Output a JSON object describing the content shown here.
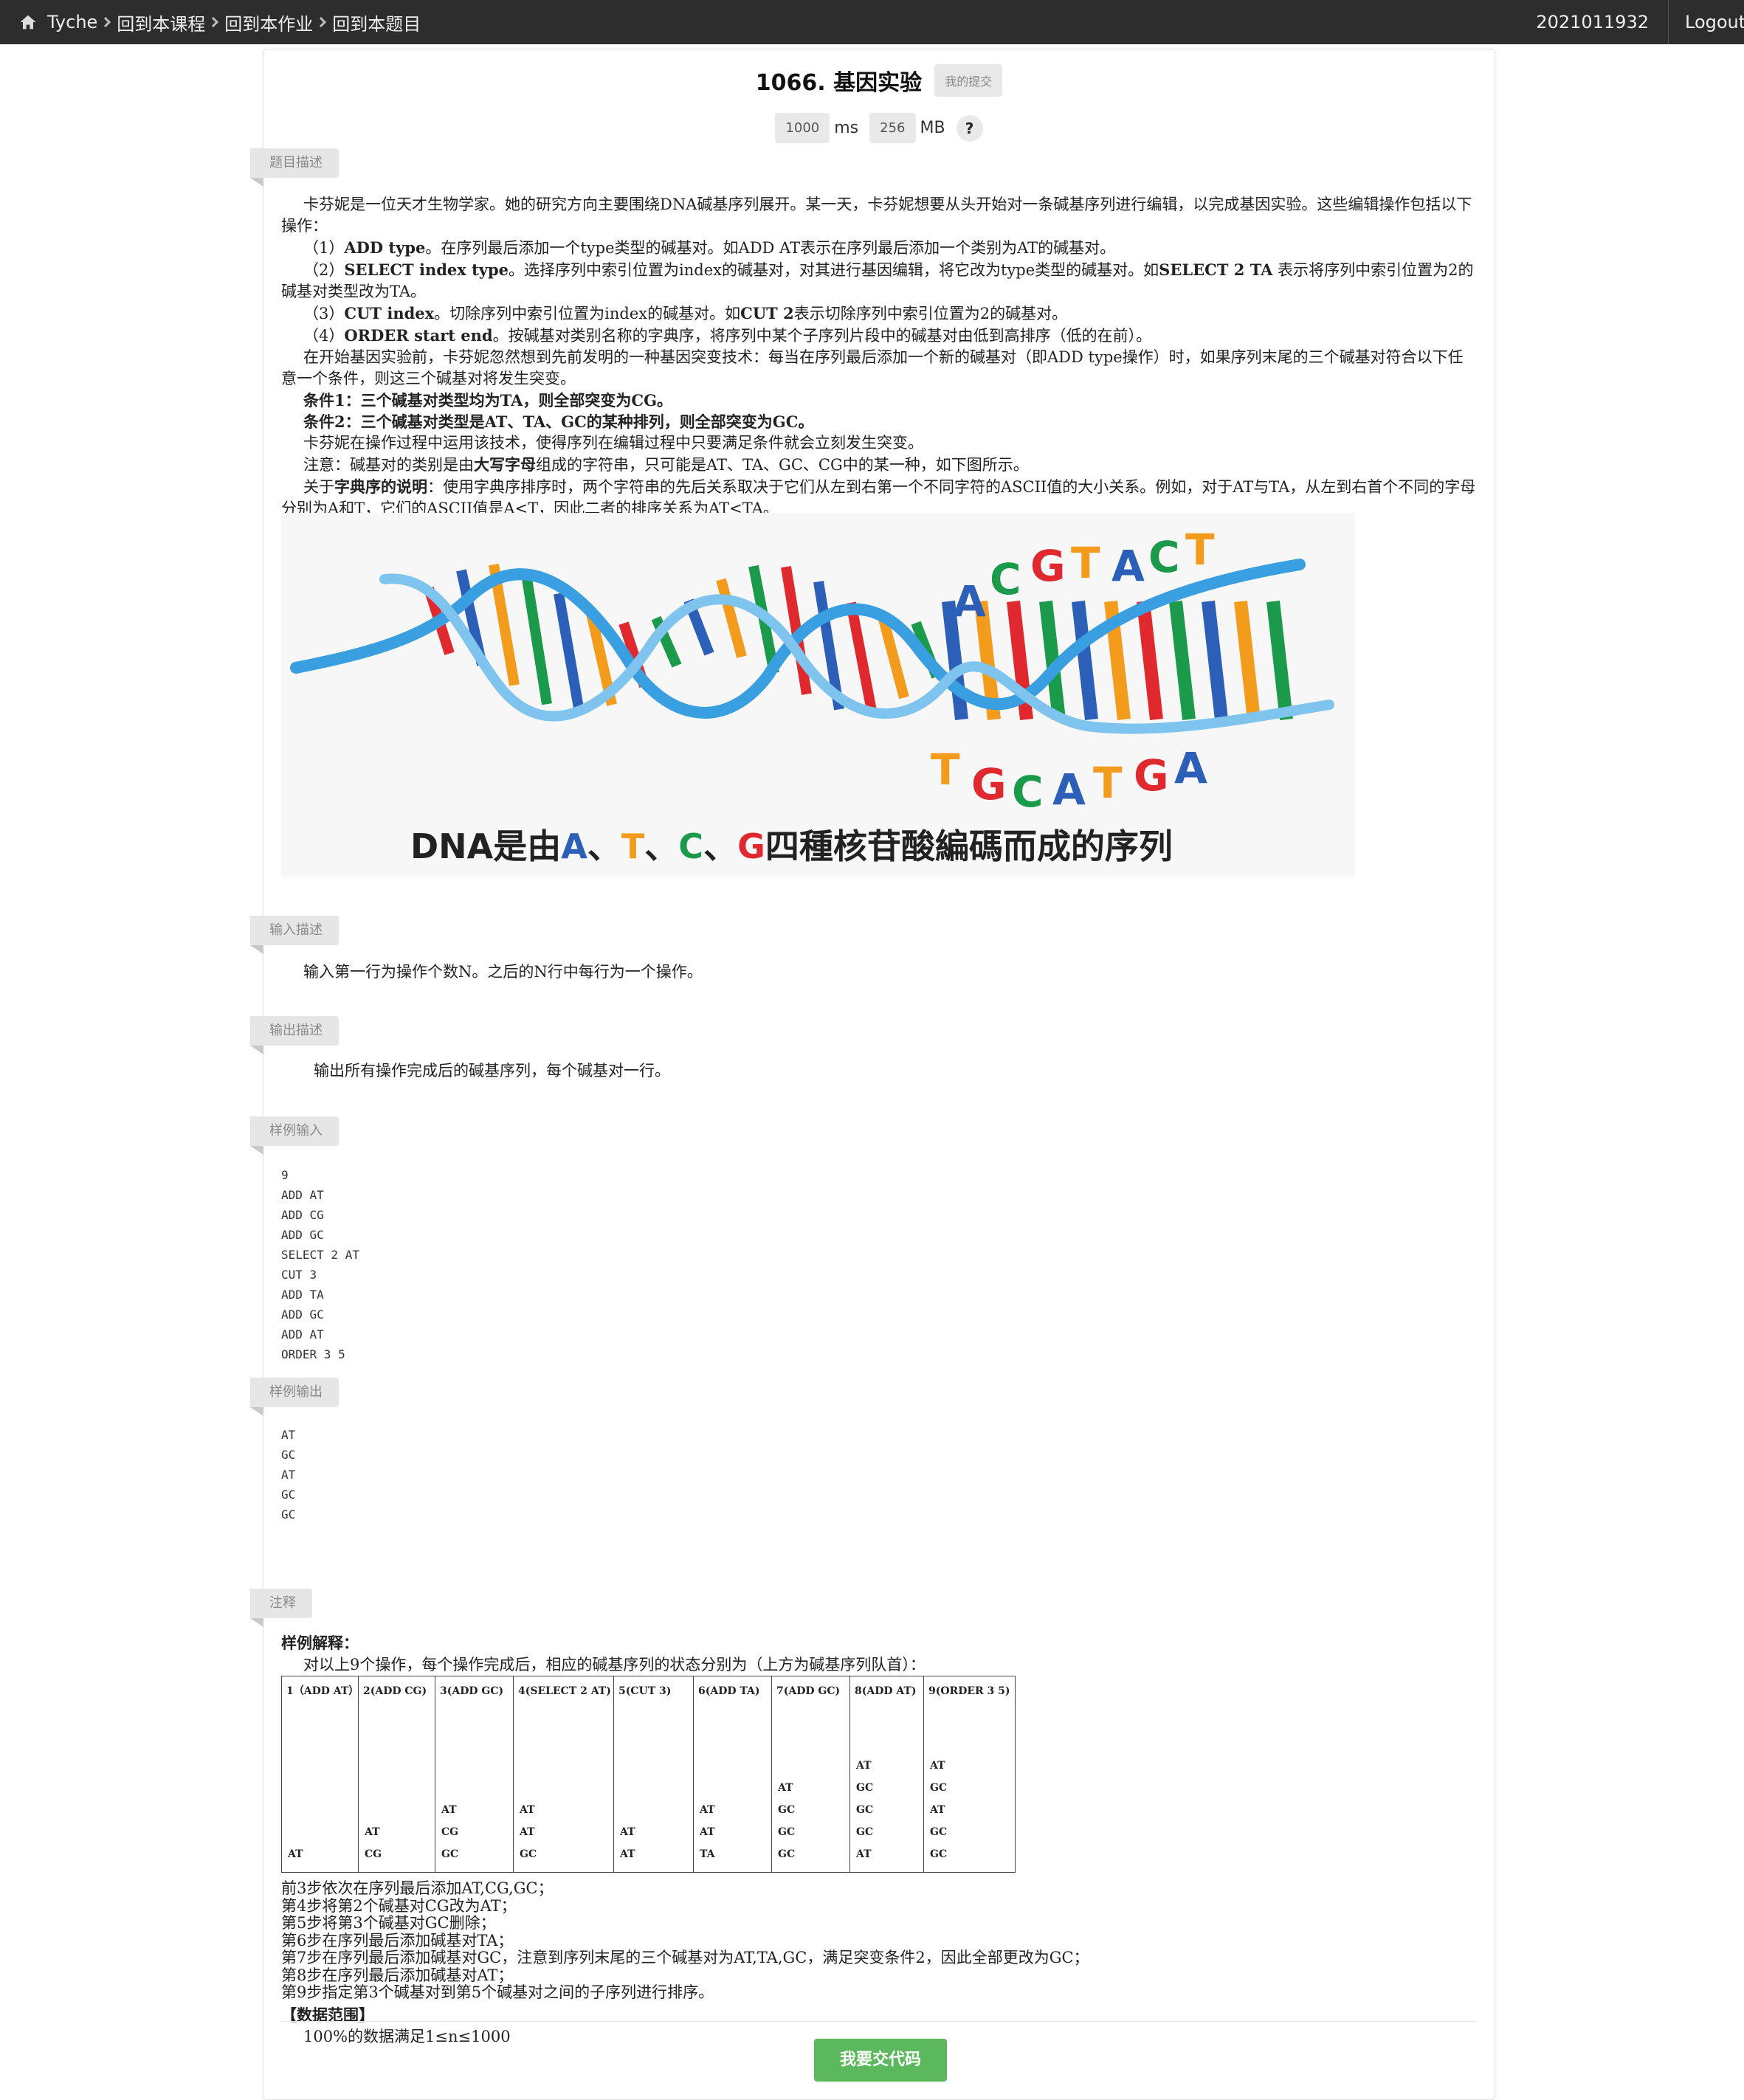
{
  "nav": {
    "brand": "Tyche",
    "crumbs": [
      "回到本课程",
      "回到本作业",
      "回到本题目"
    ],
    "user": "2021011932",
    "logout": "Logout"
  },
  "problem": {
    "title": "1066. 基因实验",
    "my_submissions": "我的提交",
    "time_limit": "1000",
    "time_unit": "ms",
    "mem_limit": "256",
    "mem_unit": "MB",
    "help": "?"
  },
  "sections": {
    "desc": "题目描述",
    "input": "输入描述",
    "output": "输出描述",
    "sample_in": "样例输入",
    "sample_out": "样例输出",
    "notes": "注释"
  },
  "description": {
    "intro": "卡芬妮是一位天才生物学家。她的研究方向主要围绕DNA碱基序列展开。某一天，卡芬妮想要从头开始对一条碱基序列进行编辑，以完成基因实验。这些编辑操作包括以下操作：",
    "op1_num": "（1）",
    "op1_cmd": "ADD type",
    "op1_text": "。在序列最后添加一个type类型的碱基对。如ADD AT表示在序列最后添加一个类别为AT的碱基对。",
    "op2_num": "（2）",
    "op2_cmd": "SELECT index type",
    "op2_text": "。选择序列中索引位置为index的碱基对，对其进行基因编辑，将它改为type类型的碱基对。如",
    "op2_cmd2": "SELECT 2 TA",
    "op2_text2": " 表示将序列中索引位置为2的碱基对类型改为TA。",
    "op3_num": "（3）",
    "op3_cmd": "CUT index",
    "op3_text": "。切除序列中索引位置为index的碱基对。如",
    "op3_cmd2": "CUT 2",
    "op3_text2": "表示切除序列中索引位置为2的碱基对。",
    "op4_num": "（4）",
    "op4_cmd": "ORDER start end",
    "op4_text": "。按碱基对类别名称的字典序，将序列中某个子序列片段中的碱基对由低到高排序（低的在前）。",
    "mutation": "在开始基因实验前，卡芬妮忽然想到先前发明的一种基因突变技术：每当在序列最后添加一个新的碱基对（即ADD type操作）时，如果序列末尾的三个碱基对符合以下任意一个条件，则这三个碱基对将发生突变。",
    "cond1": "条件1：三个碱基对类型均为TA，则全部突变为CG。",
    "cond2": "条件2：三个碱基对类型是AT、TA、GC的某种排列，则全部突变为GC。",
    "cond_note": "卡芬妮在操作过程中运用该技术，使得序列在编辑过程中只要满足条件就会立刻发生突变。",
    "note_pre": "注意：碱基对的类别是由",
    "note_bold": "大写字母",
    "note_post": "组成的字符串，只可能是AT、TA、GC、CG中的某一种，如下图所示。",
    "lex_pre": "关于",
    "lex_bold": "字典序的说明",
    "lex_post": "：使用字典序排序时，两个字符串的先后关系取决于它们从左到右第一个不同字符的ASCII值的大小关系。例如，对于AT与TA，从左到右首个不同的字母分别为A和T，它们的ASCII值是A<T，因此二者的排序关系为AT<TA。"
  },
  "figure": {
    "top_letters": [
      "A",
      "C",
      "G",
      "T",
      "A",
      "C",
      "T"
    ],
    "bottom_letters": [
      "T",
      "G",
      "C",
      "A",
      "T",
      "G",
      "A"
    ],
    "caption_pre": "DNA是由",
    "caption_A": "A",
    "caption_sep1": "、",
    "caption_T": "T",
    "caption_sep2": "、",
    "caption_C": "C",
    "caption_sep3": "、",
    "caption_G": "G",
    "caption_post": "四種核苷酸編碼而成的序列",
    "colors": {
      "A": "#2c5fb8",
      "C": "#1a9a4a",
      "G": "#e0292e",
      "T": "#f29b1d",
      "helix": "#3a9fe0"
    }
  },
  "input_desc": "输入第一行为操作个数N。之后的N行中每行为一个操作。",
  "output_desc": "输出所有操作完成后的碱基序列，每个碱基对一行。",
  "sample_input": [
    "9",
    "ADD AT",
    "ADD CG",
    "ADD GC",
    "SELECT 2 AT",
    "CUT 3",
    "ADD TA",
    "ADD GC",
    "ADD AT",
    "ORDER 3 5"
  ],
  "sample_output": [
    "AT",
    "GC",
    "AT",
    "GC",
    "GC"
  ],
  "notes": {
    "heading": "样例解释：",
    "intro": "对以上9个操作，每个操作完成后，相应的碱基序列的状态分别为（上方为碱基序列队首）：",
    "table": [
      {
        "head": "1（ADD AT）",
        "stack": [
          "AT"
        ]
      },
      {
        "head": "2(ADD CG)",
        "stack": [
          "AT",
          "CG"
        ]
      },
      {
        "head": "3(ADD GC)",
        "stack": [
          "AT",
          "CG",
          "GC"
        ]
      },
      {
        "head": "4(SELECT 2 AT)",
        "stack": [
          "AT",
          "AT",
          "GC"
        ]
      },
      {
        "head": "5(CUT 3)",
        "stack": [
          "AT",
          "AT"
        ]
      },
      {
        "head": "6(ADD TA)",
        "stack": [
          "AT",
          "AT",
          "TA"
        ]
      },
      {
        "head": "7(ADD GC)",
        "stack": [
          "AT",
          "GC",
          "GC",
          "GC"
        ]
      },
      {
        "head": "8(ADD AT)",
        "stack": [
          "AT",
          "GC",
          "GC",
          "GC",
          "AT"
        ]
      },
      {
        "head": "9(ORDER 3 5)",
        "stack": [
          "AT",
          "GC",
          "AT",
          "GC",
          "GC"
        ]
      }
    ],
    "steps": [
      "前3步依次在序列最后添加AT,CG,GC；",
      "第4步将第2个碱基对CG改为AT；",
      "第5步将第3个碱基对GC删除；",
      "第6步在序列最后添加碱基对TA；",
      "第7步在序列最后添加碱基对GC，注意到序列末尾的三个碱基对为AT,TA,GC，满足突变条件2，因此全部更改为GC；",
      "第8步在序列最后添加碱基对AT；",
      "第9步指定第3个碱基对到第5个碱基对之间的子序列进行排序。"
    ],
    "range_title": "【数据范围】",
    "range": "100%的数据满足1≤n≤1000"
  },
  "submit": "我要交代码"
}
